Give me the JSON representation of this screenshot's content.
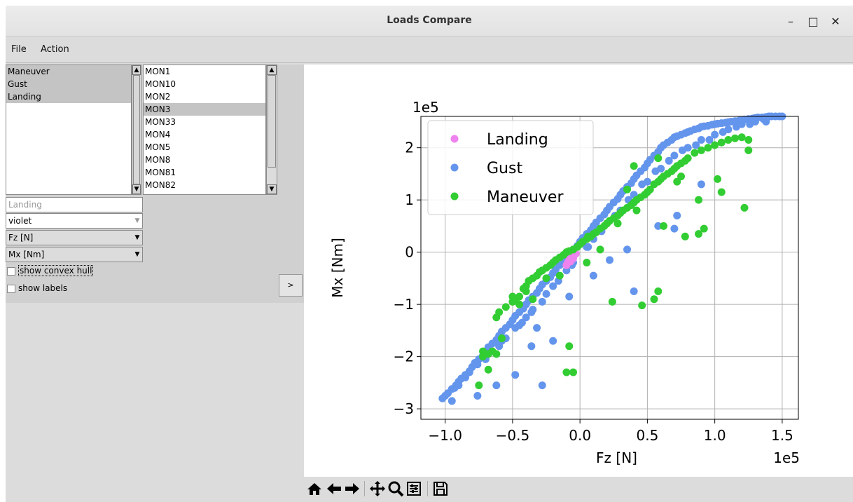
{
  "window": {
    "title": "Loads Compare"
  },
  "menu": {
    "file": "File",
    "action": "Action"
  },
  "load_cases": {
    "items": [
      {
        "label": "Maneuver",
        "selected": true
      },
      {
        "label": "Gust",
        "selected": true
      },
      {
        "label": "Landing",
        "selected": true
      }
    ]
  },
  "monitors": {
    "items": [
      {
        "label": "MON1",
        "selected": false
      },
      {
        "label": "MON10",
        "selected": false
      },
      {
        "label": "MON2",
        "selected": false
      },
      {
        "label": "MON3",
        "selected": true
      },
      {
        "label": "MON33",
        "selected": false
      },
      {
        "label": "MON4",
        "selected": false
      },
      {
        "label": "MON5",
        "selected": false
      },
      {
        "label": "MON8",
        "selected": false
      },
      {
        "label": "MON81",
        "selected": false
      },
      {
        "label": "MON82",
        "selected": false
      }
    ]
  },
  "controls": {
    "name_field": "Landing",
    "color_select": "violet",
    "x_select": "Fz [N]",
    "y_select": "Mx [Nm]",
    "convex_hull_label": "show convex hull",
    "show_labels_label": "show labels",
    "expand_button": ">"
  },
  "toolbar": [
    "home-icon",
    "back-icon",
    "forward-icon",
    "pan-icon",
    "zoom-icon",
    "configure-icon",
    "save-icon"
  ],
  "colors": {
    "landing": "#ee82ee",
    "gust": "#6495ed",
    "maneuver": "#32cd32"
  },
  "chart_data": {
    "type": "scatter",
    "title": "",
    "xlabel": "Fz [N]",
    "ylabel": "Mx [Nm]",
    "x_offset_text": "1e5",
    "y_offset_text": "1e5",
    "xlim": [
      -1.18,
      1.62
    ],
    "ylim": [
      -3.2,
      2.6
    ],
    "xticks": [
      -1.0,
      -0.5,
      0.0,
      0.5,
      1.0,
      1.5
    ],
    "xtick_labels": [
      "−1.0",
      "−0.5",
      "0.0",
      "0.5",
      "1.0",
      "1.5"
    ],
    "yticks": [
      -3,
      -2,
      -1,
      0,
      1,
      2
    ],
    "ytick_labels": [
      "−3",
      "−2",
      "−1",
      "0",
      "1",
      "2"
    ],
    "grid": true,
    "legend_position": "top-left",
    "series": [
      {
        "name": "Landing",
        "color": "#ee82ee",
        "x": [
          -0.1,
          -0.09,
          -0.08,
          -0.07,
          -0.06,
          -0.05,
          -0.04,
          -0.03,
          -0.05,
          -0.07
        ],
        "y": [
          -0.25,
          -0.2,
          -0.15,
          -0.12,
          -0.1,
          -0.08,
          -0.05,
          -0.03,
          -0.12,
          -0.18
        ]
      },
      {
        "name": "Gust",
        "color": "#6495ed",
        "x": [
          -1.02,
          -1.0,
          -0.98,
          -0.95,
          -0.92,
          -0.9,
          -0.88,
          -0.85,
          -0.82,
          -0.8,
          -0.78,
          -0.75,
          -0.72,
          -0.7,
          -0.68,
          -0.65,
          -0.62,
          -0.6,
          -0.58,
          -0.55,
          -0.52,
          -0.5,
          -0.48,
          -0.45,
          -0.42,
          -0.4,
          -0.38,
          -0.35,
          -0.32,
          -0.3,
          -0.28,
          -0.25,
          -0.22,
          -0.2,
          -0.18,
          -0.15,
          -0.12,
          -0.1,
          -0.08,
          -0.05,
          -0.02,
          0.0,
          0.02,
          0.05,
          0.08,
          0.1,
          0.12,
          0.15,
          0.18,
          0.2,
          0.22,
          0.25,
          0.28,
          0.3,
          0.32,
          0.35,
          0.38,
          0.4,
          0.42,
          0.45,
          0.48,
          0.5,
          0.52,
          0.55,
          0.58,
          0.6,
          0.62,
          0.65,
          0.68,
          0.7,
          0.72,
          0.75,
          0.78,
          0.8,
          0.82,
          0.85,
          0.88,
          0.9,
          0.92,
          0.95,
          0.98,
          1.0,
          1.02,
          1.05,
          1.08,
          1.1,
          1.12,
          1.15,
          1.18,
          1.2,
          1.22,
          1.25,
          1.28,
          1.3,
          1.32,
          1.35,
          1.38,
          1.4,
          1.42,
          1.45,
          1.48,
          1.5,
          -0.9,
          -0.85,
          -0.7,
          -0.6,
          -0.55,
          -0.45,
          -0.4,
          -0.35,
          -0.25,
          -0.2,
          -0.1,
          -0.05,
          0.05,
          0.1,
          0.2,
          0.3,
          0.4,
          0.5,
          0.6,
          0.7,
          0.8,
          0.9,
          1.0,
          1.1,
          1.2,
          1.3,
          -0.93,
          -0.82,
          -0.76,
          -0.66,
          -0.58,
          -0.48,
          -0.43,
          -0.36,
          -0.28,
          -0.16,
          -0.06,
          0.06,
          0.16,
          0.26,
          0.36,
          0.46,
          0.56,
          0.66,
          0.76,
          0.86,
          0.96,
          1.06,
          1.16,
          1.26,
          1.36,
          -0.62,
          -0.48,
          -0.36,
          -0.32,
          -0.2,
          -0.08,
          0.1,
          0.22,
          0.35,
          0.58,
          0.7,
          -0.76,
          -0.28,
          0.4,
          0.72,
          0.9,
          -0.95,
          1.38
        ],
        "y": [
          -2.8,
          -2.75,
          -2.7,
          -2.62,
          -2.55,
          -2.48,
          -2.42,
          -2.35,
          -2.28,
          -2.2,
          -2.12,
          -2.05,
          -1.98,
          -1.9,
          -1.82,
          -1.75,
          -1.68,
          -1.6,
          -1.52,
          -1.45,
          -1.38,
          -1.3,
          -1.22,
          -1.15,
          -1.08,
          -1.0,
          -0.92,
          -0.85,
          -0.78,
          -0.7,
          -0.62,
          -0.55,
          -0.48,
          -0.4,
          -0.33,
          -0.25,
          -0.18,
          -0.1,
          -0.03,
          0.05,
          0.12,
          0.2,
          0.27,
          0.35,
          0.42,
          0.5,
          0.57,
          0.65,
          0.72,
          0.8,
          0.87,
          0.95,
          1.02,
          1.1,
          1.17,
          1.25,
          1.32,
          1.4,
          1.47,
          1.55,
          1.62,
          1.7,
          1.77,
          1.85,
          1.92,
          2.0,
          2.05,
          2.1,
          2.15,
          2.2,
          2.22,
          2.25,
          2.28,
          2.3,
          2.32,
          2.35,
          2.37,
          2.4,
          2.41,
          2.42,
          2.44,
          2.45,
          2.46,
          2.47,
          2.48,
          2.49,
          2.5,
          2.51,
          2.52,
          2.53,
          2.54,
          2.55,
          2.56,
          2.57,
          2.58,
          2.58,
          2.59,
          2.6,
          2.6,
          2.6,
          2.6,
          2.6,
          -2.55,
          -2.4,
          -2.05,
          -1.8,
          -1.65,
          -1.4,
          -1.25,
          -1.1,
          -0.8,
          -0.65,
          -0.35,
          -0.2,
          0.1,
          0.25,
          0.55,
          0.8,
          1.1,
          1.35,
          1.6,
          1.85,
          2.0,
          2.15,
          2.25,
          2.35,
          2.45,
          2.5,
          -2.6,
          -2.3,
          -2.15,
          -1.9,
          -1.7,
          -1.45,
          -1.35,
          -1.15,
          -0.95,
          -0.55,
          -0.25,
          0.1,
          0.4,
          0.7,
          1.0,
          1.3,
          1.55,
          1.75,
          1.95,
          2.05,
          2.15,
          2.3,
          2.4,
          2.45,
          2.55,
          -2.55,
          -2.35,
          -1.8,
          -1.45,
          -1.7,
          -0.85,
          -0.45,
          -0.15,
          0.05,
          0.5,
          0.45,
          -2.75,
          -2.55,
          -0.75,
          0.7,
          1.3,
          -2.85,
          2.5
        ]
      },
      {
        "name": "Maneuver",
        "color": "#32cd32",
        "x": [
          -0.75,
          -0.72,
          -0.68,
          -0.62,
          -0.6,
          -0.55,
          -0.5,
          -0.48,
          -0.45,
          -0.42,
          -0.4,
          -0.38,
          -0.35,
          -0.32,
          -0.3,
          -0.28,
          -0.25,
          -0.22,
          -0.2,
          -0.18,
          -0.15,
          -0.12,
          -0.1,
          -0.08,
          -0.05,
          -0.02,
          0.0,
          0.02,
          0.05,
          0.08,
          0.1,
          0.12,
          0.15,
          0.18,
          0.2,
          0.22,
          0.25,
          0.28,
          0.3,
          0.32,
          0.35,
          0.38,
          0.4,
          0.42,
          0.45,
          0.48,
          0.5,
          0.52,
          0.55,
          0.58,
          0.6,
          0.62,
          0.65,
          0.68,
          0.7,
          0.72,
          0.75,
          0.78,
          0.8,
          0.85,
          0.9,
          0.95,
          1.0,
          1.05,
          1.1,
          1.15,
          1.2,
          1.25,
          0.06,
          0.35,
          0.4,
          0.58,
          0.72,
          0.75,
          0.88,
          0.92,
          1.05,
          1.22,
          0.24,
          0.46,
          0.55,
          0.58,
          -0.4,
          -0.5,
          -0.58,
          -0.62,
          -0.65,
          -0.68,
          -0.72,
          -0.08,
          -0.05,
          -0.1,
          1.25,
          1.02,
          0.88,
          0.78,
          0.62,
          0.42,
          0.28,
          0.15,
          0.05,
          -0.15,
          -0.25,
          -0.35,
          -0.45
        ],
        "y": [
          -2.55,
          -1.9,
          -2.25,
          -1.25,
          -1.15,
          -1.05,
          -0.95,
          -0.9,
          -0.85,
          -0.7,
          -0.65,
          -0.55,
          -0.5,
          -0.45,
          -0.38,
          -0.35,
          -0.3,
          -0.25,
          -0.2,
          -0.15,
          -0.1,
          -0.05,
          0.0,
          0.02,
          0.05,
          0.1,
          0.15,
          0.2,
          0.25,
          0.3,
          0.35,
          0.38,
          0.45,
          0.5,
          0.55,
          0.6,
          0.65,
          0.7,
          0.75,
          0.8,
          0.85,
          0.9,
          0.95,
          1.0,
          1.05,
          1.1,
          1.15,
          1.2,
          1.3,
          1.35,
          1.4,
          1.45,
          1.5,
          1.55,
          1.6,
          1.65,
          1.7,
          1.75,
          1.8,
          1.9,
          1.95,
          2.0,
          2.05,
          2.1,
          2.15,
          2.18,
          2.2,
          2.15,
          0.3,
          1.2,
          1.65,
          1.8,
          1.35,
          1.45,
          1.0,
          0.45,
          1.15,
          0.85,
          -0.95,
          -1.02,
          -0.9,
          -0.75,
          -0.75,
          -0.85,
          -1.65,
          -1.95,
          -1.9,
          -1.95,
          -2.0,
          -1.8,
          -2.3,
          -2.3,
          1.95,
          1.4,
          0.35,
          0.3,
          0.5,
          0.8,
          0.55,
          0.05,
          -0.2,
          -0.45,
          -0.5,
          -0.9,
          -1.0
        ]
      }
    ]
  }
}
